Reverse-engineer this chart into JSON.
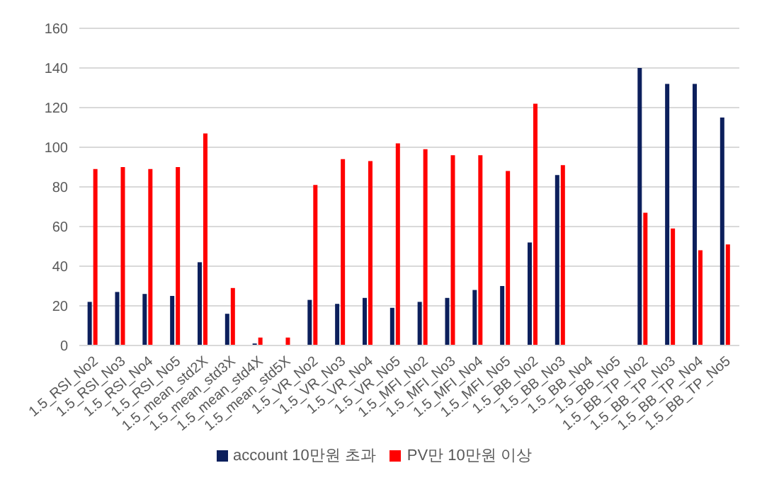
{
  "chart_data": {
    "type": "bar",
    "categories": [
      "1.5_RSI_No2",
      "1.5_RSI_No3",
      "1.5_RSI_No4",
      "1.5_RSI_No5",
      "1.5_mean_std2X",
      "1.5_mean_std3X",
      "1.5_mean_std4X",
      "1.5_mean_std5X",
      "1.5_VR_No2",
      "1.5_VR_No3",
      "1.5_VR_No4",
      "1.5_VR_No5",
      "1.5_MFI_No2",
      "1.5_MFI_No3",
      "1.5_MFI_No4",
      "1.5_MFI_No5",
      "1.5_BB_No2",
      "1.5_BB_No3",
      "1.5_BB_No4",
      "1.5_BB_No5",
      "1.5_BB_TP_No2",
      "1.5_BB_TP_No3",
      "1.5_BB_TP_No4",
      "1.5_BB_TP_No5"
    ],
    "series": [
      {
        "name": "account 10만원 초과",
        "color": "#0c1f5c",
        "values": [
          22,
          27,
          26,
          25,
          42,
          16,
          1,
          0,
          23,
          21,
          24,
          19,
          22,
          24,
          28,
          30,
          52,
          86,
          null,
          null,
          140,
          132,
          132,
          115
        ]
      },
      {
        "name": "PV만 10만원 이상",
        "color": "#ff0000",
        "values": [
          89,
          90,
          89,
          90,
          107,
          29,
          4,
          4,
          81,
          94,
          93,
          102,
          99,
          96,
          96,
          88,
          122,
          91,
          null,
          null,
          67,
          59,
          48,
          51
        ]
      }
    ],
    "ylim": [
      0,
      160
    ],
    "yticks": [
      0,
      20,
      40,
      60,
      80,
      100,
      120,
      140,
      160
    ],
    "grid": "y",
    "legend": "bottom"
  }
}
